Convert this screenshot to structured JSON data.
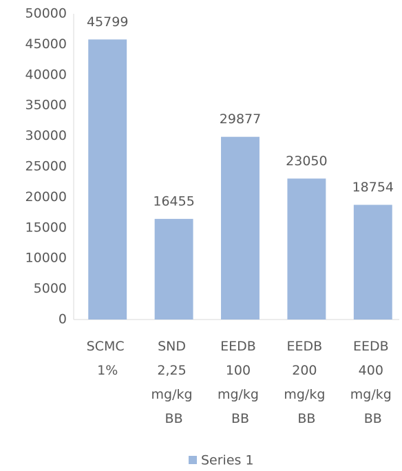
{
  "chart_data": {
    "type": "bar",
    "categories": [
      "SCMC 1%",
      "SND 2,25 mg/kg BB",
      "EEDB 100 mg/kg BB",
      "EEDB 200 mg/kg BB",
      "EEDB 400 mg/kg BB"
    ],
    "series": [
      {
        "name": "Series 1",
        "color": "#9db8de",
        "values": [
          45799,
          16455,
          29877,
          23050,
          18754
        ]
      }
    ],
    "ylim": [
      0,
      50000
    ],
    "yticks": [
      0,
      5000,
      10000,
      15000,
      20000,
      25000,
      30000,
      35000,
      40000,
      45000,
      50000
    ],
    "grid": false,
    "legend": "bottom"
  }
}
